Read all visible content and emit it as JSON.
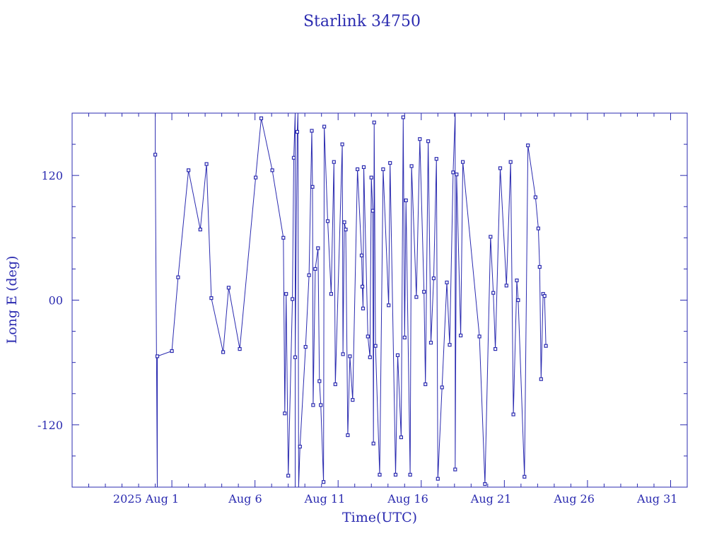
{
  "chart_data": {
    "type": "line",
    "title": "Starlink 34750",
    "xlabel": "Time(UTC)",
    "ylabel": "Long E (deg)",
    "x_range": [
      "2025-07-26",
      "2025-09-01"
    ],
    "ylim": [
      -180,
      180
    ],
    "x_tick_labels": [
      "2025 Aug  1",
      "Aug  6",
      "Aug 11",
      "Aug 16",
      "Aug 21",
      "Aug 26",
      "Aug 31"
    ],
    "x_tick_dates": [
      "2025-08-01",
      "2025-08-06",
      "2025-08-11",
      "2025-08-16",
      "2025-08-21",
      "2025-08-26",
      "2025-08-31"
    ],
    "y_ticks": [
      120,
      0,
      -120
    ],
    "y_tick_labels": [
      "120",
      "00",
      "-120"
    ],
    "color": "#2b2bb0",
    "marker": "square",
    "grid": false,
    "series": [
      {
        "points": [
          [
            "2025-07-31T00:00:00Z",
            180
          ],
          [
            "2025-07-31T00:00:00Z",
            140
          ],
          [
            "2025-07-31T03:00:00Z",
            -180
          ],
          [
            "2025-07-31T03:00:00Z",
            -54
          ],
          [
            "2025-08-01T00:00:00Z",
            -49
          ],
          [
            "2025-08-01T09:00:00Z",
            22
          ],
          [
            "2025-08-02T00:00:00Z",
            125
          ],
          [
            "2025-08-02T17:00:00Z",
            68
          ],
          [
            "2025-08-03T02:00:00Z",
            131
          ],
          [
            "2025-08-03T09:00:00Z",
            2
          ],
          [
            "2025-08-04T02:00:00Z",
            -50
          ],
          [
            "2025-08-04T10:00:00Z",
            12
          ],
          [
            "2025-08-05T02:00:00Z",
            -47
          ],
          [
            "2025-08-06T01:00:00Z",
            118
          ],
          [
            "2025-08-06T09:00:00Z",
            175
          ],
          [
            "2025-08-07T01:00:00Z",
            125
          ],
          [
            "2025-08-07T17:00:00Z",
            60
          ],
          [
            "2025-08-07T19:00:00Z",
            -109
          ],
          [
            "2025-08-07T21:00:00Z",
            6
          ],
          [
            "2025-08-08T00:00:00Z",
            -169
          ],
          [
            "2025-08-08T06:00:00Z",
            1
          ],
          [
            "2025-08-08T08:00:00Z",
            137
          ],
          [
            "2025-08-08T10:00:00Z",
            180
          ],
          [
            "2025-08-08T10:00:00Z",
            -180
          ],
          [
            "2025-08-08T10:00:00Z",
            -55
          ],
          [
            "2025-08-08T13:00:00Z",
            162
          ],
          [
            "2025-08-08T14:00:00Z",
            180
          ],
          [
            "2025-08-08T15:00:00Z",
            -180
          ],
          [
            "2025-08-08T17:00:00Z",
            -141
          ],
          [
            "2025-08-09T01:00:00Z",
            -45
          ],
          [
            "2025-08-09T06:00:00Z",
            24
          ],
          [
            "2025-08-09T10:00:00Z",
            163
          ],
          [
            "2025-08-09T11:00:00Z",
            109
          ],
          [
            "2025-08-09T12:00:00Z",
            -101
          ],
          [
            "2025-08-09T15:00:00Z",
            30
          ],
          [
            "2025-08-09T19:00:00Z",
            50
          ],
          [
            "2025-08-09T21:00:00Z",
            -78
          ],
          [
            "2025-08-09T23:00:00Z",
            -101
          ],
          [
            "2025-08-10T03:00:00Z",
            -175
          ],
          [
            "2025-08-10T04:00:00Z",
            167
          ],
          [
            "2025-08-10T09:00:00Z",
            76
          ],
          [
            "2025-08-10T14:00:00Z",
            6
          ],
          [
            "2025-08-10T18:00:00Z",
            133
          ],
          [
            "2025-08-10T20:00:00Z",
            -81
          ],
          [
            "2025-08-11T06:00:00Z",
            150
          ],
          [
            "2025-08-11T07:00:00Z",
            -52
          ],
          [
            "2025-08-11T09:00:00Z",
            75
          ],
          [
            "2025-08-11T11:00:00Z",
            68
          ],
          [
            "2025-08-11T14:00:00Z",
            -130
          ],
          [
            "2025-08-11T17:00:00Z",
            -54
          ],
          [
            "2025-08-11T21:00:00Z",
            -96
          ],
          [
            "2025-08-12T04:00:00Z",
            126
          ],
          [
            "2025-08-12T10:00:00Z",
            43
          ],
          [
            "2025-08-12T11:00:00Z",
            13
          ],
          [
            "2025-08-12T12:00:00Z",
            -8
          ],
          [
            "2025-08-12T13:00:00Z",
            128
          ],
          [
            "2025-08-12T19:00:00Z",
            -35
          ],
          [
            "2025-08-12T22:00:00Z",
            -55
          ],
          [
            "2025-08-13T00:00:00Z",
            118
          ],
          [
            "2025-08-13T02:00:00Z",
            86
          ],
          [
            "2025-08-13T03:00:00Z",
            -138
          ],
          [
            "2025-08-13T04:00:00Z",
            171
          ],
          [
            "2025-08-13T06:00:00Z",
            -44
          ],
          [
            "2025-08-13T12:00:00Z",
            -168
          ],
          [
            "2025-08-13T17:00:00Z",
            126
          ],
          [
            "2025-08-14T01:00:00Z",
            -5
          ],
          [
            "2025-08-14T03:00:00Z",
            132
          ],
          [
            "2025-08-14T11:00:00Z",
            -168
          ],
          [
            "2025-08-14T14:00:00Z",
            -53
          ],
          [
            "2025-08-14T19:00:00Z",
            -132
          ],
          [
            "2025-08-14T22:00:00Z",
            176
          ],
          [
            "2025-08-15T00:00:00Z",
            -36
          ],
          [
            "2025-08-15T02:00:00Z",
            96
          ],
          [
            "2025-08-15T08:00:00Z",
            -168
          ],
          [
            "2025-08-15T10:00:00Z",
            129
          ],
          [
            "2025-08-15T17:00:00Z",
            3
          ],
          [
            "2025-08-15T22:00:00Z",
            155
          ],
          [
            "2025-08-16T04:00:00Z",
            8
          ],
          [
            "2025-08-16T06:00:00Z",
            -81
          ],
          [
            "2025-08-16T10:00:00Z",
            153
          ],
          [
            "2025-08-16T14:00:00Z",
            -41
          ],
          [
            "2025-08-16T18:00:00Z",
            21
          ],
          [
            "2025-08-16T22:00:00Z",
            136
          ],
          [
            "2025-08-17T00:00:00Z",
            -172
          ],
          [
            "2025-08-17T06:00:00Z",
            -84
          ],
          [
            "2025-08-17T13:00:00Z",
            17
          ],
          [
            "2025-08-17T17:00:00Z",
            -43
          ],
          [
            "2025-08-17T22:00:00Z",
            123
          ],
          [
            "2025-08-18T01:00:00Z",
            180
          ],
          [
            "2025-08-18T01:00:00Z",
            -163
          ],
          [
            "2025-08-18T03:00:00Z",
            121
          ],
          [
            "2025-08-18T09:00:00Z",
            -34
          ],
          [
            "2025-08-18T12:00:00Z",
            133
          ],
          [
            "2025-08-19T12:00:00Z",
            -35
          ],
          [
            "2025-08-19T20:00:00Z",
            -177
          ],
          [
            "2025-08-20T04:00:00Z",
            61
          ],
          [
            "2025-08-20T08:00:00Z",
            7
          ],
          [
            "2025-08-20T11:00:00Z",
            -47
          ],
          [
            "2025-08-20T18:00:00Z",
            127
          ],
          [
            "2025-08-21T03:00:00Z",
            14
          ],
          [
            "2025-08-21T09:00:00Z",
            133
          ],
          [
            "2025-08-21T13:00:00Z",
            -110
          ],
          [
            "2025-08-21T18:00:00Z",
            19
          ],
          [
            "2025-08-21T20:00:00Z",
            0
          ],
          [
            "2025-08-22T05:00:00Z",
            -170
          ],
          [
            "2025-08-22T10:00:00Z",
            149
          ],
          [
            "2025-08-22T21:00:00Z",
            99
          ],
          [
            "2025-08-23T01:00:00Z",
            69
          ],
          [
            "2025-08-23T03:00:00Z",
            32
          ],
          [
            "2025-08-23T05:00:00Z",
            -76
          ],
          [
            "2025-08-23T08:00:00Z",
            6
          ],
          [
            "2025-08-23T10:00:00Z",
            4
          ],
          [
            "2025-08-23T12:00:00Z",
            -44
          ]
        ]
      }
    ]
  }
}
